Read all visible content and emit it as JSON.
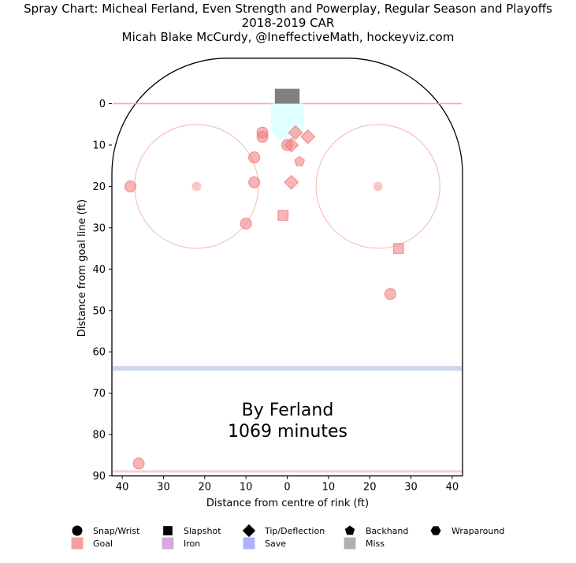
{
  "chart_data": {
    "type": "scatter",
    "title": "Spray Chart: Micheal Ferland, Even Strength and Powerplay, Regular Season and Playoffs",
    "subtitle": "2018-2019 CAR",
    "credit": "Micah Blake McCurdy, @IneffectiveMath, hockeyviz.com",
    "xlabel": "Distance from centre of rink (ft)",
    "ylabel": "Distance from goal line (ft)",
    "xlim": [
      42.5,
      -42.5
    ],
    "ylim": [
      90,
      -11
    ],
    "x_ticks": [
      40,
      30,
      20,
      10,
      0,
      10,
      20,
      30,
      40
    ],
    "x_tick_values": [
      40,
      30,
      20,
      10,
      0,
      -10,
      -20,
      -30,
      -40
    ],
    "y_ticks": [
      0,
      10,
      20,
      30,
      40,
      50,
      60,
      70,
      80,
      90
    ],
    "annotation": {
      "line1": "By Ferland",
      "line2": "1069 minutes"
    },
    "rink": {
      "faceoff_circles": [
        {
          "x": 22,
          "y": 20,
          "r": 15
        },
        {
          "x": -22,
          "y": 20,
          "r": 15
        }
      ],
      "blue_line_y": 64,
      "centre_line_y": 89
    },
    "colors": {
      "shot": "#f07878",
      "goal": "#f08080",
      "iron": "#c080c0",
      "save": "#8080ff",
      "miss": "#808080",
      "goal_line": "#f4a0b0",
      "blue_line": "#9aaed8",
      "crease": "#e0ffff",
      "net": "#808080"
    },
    "series": [
      {
        "name": "Snap/Wrist",
        "shape": "circle",
        "points": [
          {
            "x": 38,
            "y": 20
          },
          {
            "x": 6,
            "y": 7
          },
          {
            "x": 6,
            "y": 8
          },
          {
            "x": 8,
            "y": 13
          },
          {
            "x": 8,
            "y": 19
          },
          {
            "x": 10,
            "y": 29
          },
          {
            "x": 0,
            "y": 10
          },
          {
            "x": -25,
            "y": 46
          },
          {
            "x": 36,
            "y": 87
          }
        ]
      },
      {
        "name": "Slapshot",
        "shape": "square",
        "points": [
          {
            "x": 1,
            "y": 27
          },
          {
            "x": -27,
            "y": 35
          }
        ]
      },
      {
        "name": "Tip/Deflection",
        "shape": "diamond",
        "points": [
          {
            "x": -2,
            "y": 7
          },
          {
            "x": -5,
            "y": 8
          },
          {
            "x": -1,
            "y": 10
          },
          {
            "x": -1,
            "y": 19
          }
        ]
      },
      {
        "name": "Backhand",
        "shape": "pentagon",
        "points": [
          {
            "x": -3,
            "y": 14
          }
        ]
      },
      {
        "name": "Wraparound",
        "shape": "hexagon",
        "points": []
      }
    ],
    "legend": {
      "shapes": [
        {
          "label": "Snap/Wrist",
          "shape": "circle"
        },
        {
          "label": "Slapshot",
          "shape": "square"
        },
        {
          "label": "Tip/Deflection",
          "shape": "diamond"
        },
        {
          "label": "Backhand",
          "shape": "pentagon"
        },
        {
          "label": "Wraparound",
          "shape": "hexagon"
        }
      ],
      "outcomes": [
        {
          "label": "Goal",
          "color": "#f4a0a0"
        },
        {
          "label": "Iron",
          "color": "#d8a8d8"
        },
        {
          "label": "Save",
          "color": "#b0b0ff"
        },
        {
          "label": "Miss",
          "color": "#b0b0b0"
        }
      ]
    }
  }
}
